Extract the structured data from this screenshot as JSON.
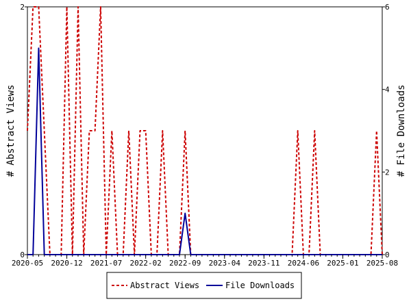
{
  "chart_data": {
    "type": "line",
    "x": [
      "2020-05",
      "2020-06",
      "2020-07",
      "2020-08",
      "2020-09",
      "2020-10",
      "2020-11",
      "2020-12",
      "2021-01",
      "2021-02",
      "2021-03",
      "2021-04",
      "2021-05",
      "2021-06",
      "2021-07",
      "2021-08",
      "2021-09",
      "2021-10",
      "2021-11",
      "2021-12",
      "2022-01",
      "2022-02",
      "2022-03",
      "2022-04",
      "2022-05",
      "2022-06",
      "2022-07",
      "2022-08",
      "2022-09",
      "2022-10",
      "2022-11",
      "2022-12",
      "2023-01",
      "2023-02",
      "2023-03",
      "2023-04",
      "2023-05",
      "2023-06",
      "2023-07",
      "2023-08",
      "2023-09",
      "2023-10",
      "2023-11",
      "2023-12",
      "2024-01",
      "2024-02",
      "2024-03",
      "2024-04",
      "2024-05",
      "2024-06",
      "2024-07",
      "2024-08",
      "2024-09",
      "2024-10",
      "2024-11",
      "2024-12",
      "2025-01",
      "2025-02",
      "2025-03",
      "2025-04",
      "2025-05",
      "2025-06",
      "2025-07",
      "2025-08"
    ],
    "x_tick_labels": [
      "2020-05",
      "2020-12",
      "2021-07",
      "2022-02",
      "2022-09",
      "2023-04",
      "2023-11",
      "2024-06",
      "2025-01",
      "2025-08"
    ],
    "series": [
      {
        "name": "Abstract Views",
        "axis": "left",
        "color": "#cc0000",
        "style": "dashed",
        "values": [
          1,
          2,
          2,
          1,
          0,
          0,
          0,
          2,
          0,
          2,
          0,
          1,
          1,
          2,
          0,
          1,
          0,
          0,
          1,
          0,
          1,
          1,
          0,
          0,
          1,
          0,
          0,
          0,
          1,
          0,
          0,
          0,
          0,
          0,
          0,
          0,
          0,
          0,
          0,
          0,
          0,
          0,
          0,
          0,
          0,
          0,
          0,
          0,
          1,
          0,
          0,
          1,
          0,
          0,
          0,
          0,
          0,
          0,
          0,
          0,
          0,
          0,
          1,
          0
        ]
      },
      {
        "name": "File Downloads",
        "axis": "right",
        "color": "#000099",
        "style": "solid",
        "values": [
          0,
          0,
          5,
          0,
          0,
          0,
          0,
          0,
          0,
          0,
          0,
          0,
          0,
          0,
          0,
          0,
          0,
          0,
          0,
          0,
          0,
          0,
          0,
          0,
          0,
          0,
          0,
          0,
          1,
          0,
          0,
          0,
          0,
          0,
          0,
          0,
          0,
          0,
          0,
          0,
          0,
          0,
          0,
          0,
          0,
          0,
          0,
          0,
          0,
          0,
          0,
          0,
          0,
          0,
          0,
          0,
          0,
          0,
          0,
          0,
          0,
          0,
          0,
          0
        ]
      }
    ],
    "ylabel": "# Abstract Views",
    "y2label": "# File Downloads",
    "ylim": [
      0,
      2
    ],
    "yticks": [
      "0",
      "2"
    ],
    "y2lim": [
      0,
      6
    ],
    "y2ticks": [
      "0",
      "2",
      "4",
      "6"
    ],
    "grid": false,
    "legend": "bottom-center"
  }
}
